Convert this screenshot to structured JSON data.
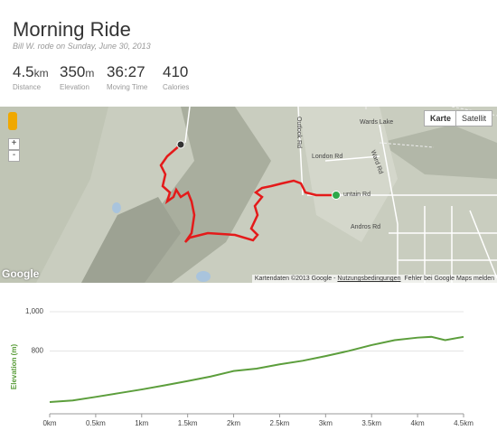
{
  "header": {
    "title": "Morning Ride",
    "subtitle": "Bill W. rode on Sunday, June 30, 2013"
  },
  "stats": [
    {
      "value": "4.5",
      "unit": "km",
      "label": "Distance"
    },
    {
      "value": "350",
      "unit": "m",
      "label": "Elevation"
    },
    {
      "value": "36:27",
      "unit": "",
      "label": "Moving Time"
    },
    {
      "value": "410",
      "unit": "",
      "label": "Calories"
    }
  ],
  "map": {
    "buttons": [
      "Karte",
      "Satellit"
    ],
    "zoom": [
      "+",
      "-"
    ],
    "labels": [
      "Wards Lake",
      "London Rd",
      "Ward Rd",
      "Outlook Rd",
      "untain Rd",
      "Andros Rd"
    ],
    "attribution": "Kartendaten ©2013 Google - ",
    "terms": "Nutzungsbedingungen",
    "report": "Fehler bei Google Maps melden",
    "logo": "Google"
  },
  "chart_data": {
    "type": "line",
    "y_label": "Elevation (m)",
    "color": "#5c9e3c",
    "grid": true,
    "x": [
      0,
      0.25,
      0.5,
      0.75,
      1,
      1.25,
      1.5,
      1.75,
      2,
      2.25,
      2.5,
      2.75,
      3,
      3.25,
      3.5,
      3.75,
      4,
      4.15,
      4.3,
      4.5
    ],
    "values": [
      540,
      548,
      566,
      585,
      604,
      625,
      647,
      670,
      698,
      710,
      732,
      750,
      774,
      800,
      830,
      855,
      868,
      872,
      855,
      872
    ],
    "xlim": [
      0,
      4.5
    ],
    "ylim": [
      480,
      1000
    ],
    "xticks": [
      {
        "value": 0,
        "label": "0km"
      },
      {
        "value": 0.5,
        "label": "0.5km"
      },
      {
        "value": 1,
        "label": "1km"
      },
      {
        "value": 1.5,
        "label": "1.5km"
      },
      {
        "value": 2,
        "label": "2km"
      },
      {
        "value": 2.5,
        "label": "2.5km"
      },
      {
        "value": 3,
        "label": "3km"
      },
      {
        "value": 3.5,
        "label": "3.5km"
      },
      {
        "value": 4,
        "label": "4km"
      },
      {
        "value": 4.5,
        "label": "4.5km"
      }
    ],
    "yticks": [
      {
        "value": 800,
        "label": "800"
      },
      {
        "value": 1000,
        "label": "1,000"
      }
    ]
  }
}
